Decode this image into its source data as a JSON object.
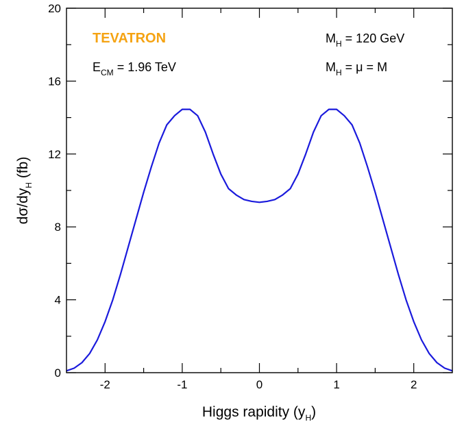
{
  "chart_data": {
    "type": "line",
    "xlabel": {
      "main": "Higgs rapidity (y",
      "sub": "H",
      "end": ")"
    },
    "ylabel": {
      "main": "dσ/dy",
      "sub": "H",
      "end": " (fb)"
    },
    "xlim": [
      -2.5,
      2.5
    ],
    "ylim": [
      0,
      20
    ],
    "x_ticks": [
      -2,
      -1,
      0,
      1,
      2
    ],
    "x_tick_labels": [
      "-2",
      "-1",
      "0",
      "1",
      "2"
    ],
    "y_ticks": [
      0,
      4,
      8,
      12,
      16,
      20
    ],
    "y_tick_labels": [
      "0",
      "4",
      "8",
      "12",
      "16",
      "20"
    ],
    "x_minor_step": 0.5,
    "y_minor_step": 2,
    "grid": false,
    "line_color": "#1a1adc",
    "series": [
      {
        "x": [
          -2.5,
          -2.4,
          -2.3,
          -2.2,
          -2.1,
          -2.0,
          -1.9,
          -1.8,
          -1.7,
          -1.6,
          -1.5,
          -1.4,
          -1.3,
          -1.2,
          -1.1,
          -1.0,
          -0.9,
          -0.8,
          -0.7,
          -0.6,
          -0.5,
          -0.4,
          -0.3,
          -0.2,
          -0.1,
          0.0,
          0.1,
          0.2,
          0.3,
          0.4,
          0.5,
          0.6,
          0.7,
          0.8,
          0.9,
          1.0,
          1.1,
          1.2,
          1.3,
          1.4,
          1.5,
          1.6,
          1.7,
          1.8,
          1.9,
          2.0,
          2.1,
          2.2,
          2.3,
          2.4,
          2.5
        ],
        "y": [
          0.1,
          0.25,
          0.55,
          1.05,
          1.8,
          2.8,
          4.0,
          5.4,
          6.9,
          8.4,
          9.9,
          11.3,
          12.6,
          13.6,
          14.1,
          14.45,
          14.45,
          14.1,
          13.2,
          12.0,
          10.9,
          10.1,
          9.75,
          9.5,
          9.4,
          9.35,
          9.4,
          9.5,
          9.75,
          10.1,
          10.9,
          12.0,
          13.2,
          14.1,
          14.45,
          14.45,
          14.1,
          13.6,
          12.6,
          11.3,
          9.9,
          8.4,
          6.9,
          5.4,
          4.0,
          2.8,
          1.8,
          1.05,
          0.55,
          0.25,
          0.1
        ]
      }
    ],
    "annotations": {
      "brand": "TEVATRON",
      "brand_color": "#f5a312",
      "ecm": {
        "main": "E",
        "sub": "CM",
        "end": " = 1.96 TeV"
      },
      "mass": {
        "main": "M",
        "sub": "H",
        "end": " = 120 GeV"
      },
      "scale": {
        "main": "M",
        "sub": "H",
        "end": " = μ = M"
      }
    }
  }
}
